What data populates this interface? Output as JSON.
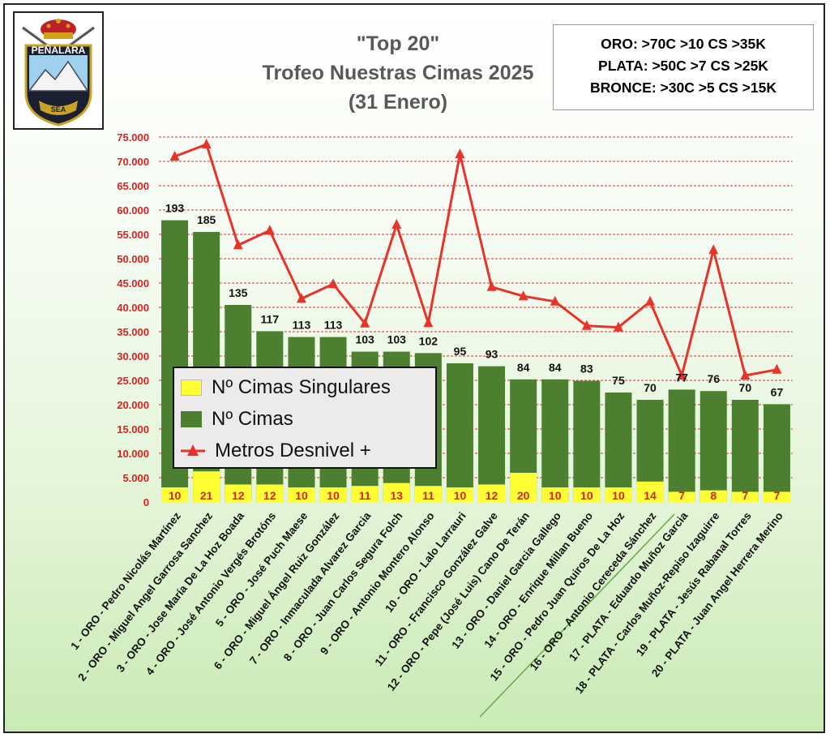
{
  "title": {
    "line1": "\"Top 20\"",
    "line2": "Trofeo Nuestras Cimas 2025",
    "line3": "(31 Enero)"
  },
  "criteria": {
    "oro": "ORO: >70C >10 CS >35K",
    "plata": "PLATA: >50C >7 CS >25K",
    "bronce": "BRONCE: >30C >5 CS >15K"
  },
  "logo": {
    "text": "PEÑALARA",
    "badge": "SEA"
  },
  "legend": {
    "singulares": "Nº Cimas Singulares",
    "cimas": "Nº Cimas",
    "metros": "Metros Desnivel +"
  },
  "colors": {
    "cimas": "#4d7f31",
    "singulares": "#ffff33",
    "metros": "#e8322a",
    "axis_labels": "#e02020",
    "gridlines": "#d93030",
    "divider": "#66aa44"
  },
  "chart_data": {
    "type": "bar",
    "categories": [
      "1 - ORO - Pedro Nicolás Martínez",
      "2 - ORO - Miguel Angel Garrosa Sanchez",
      "3 - ORO - Jose María De La Hoz Boada",
      "4 - ORO - José Antonio Vergés Brotóns",
      "5 - ORO - José Puch Maese",
      "6 - ORO - Miguel Ángel Ruiz González",
      "7 - ORO - Inmaculada Alvarez Garcia",
      "8 - ORO - Juan Carlos Segura Folch",
      "9 - ORO - Antonio Montero Alonso",
      "10 - ORO - Lalo Larrauri",
      "11 - ORO - Francisco González Galve",
      "12 - ORO - Pepe (José Luis) Cano De Terán",
      "13 - ORO - Daniel Garcia Gallego",
      "14 - ORO - Enrique Millan Bueno",
      "15 - ORO - Pedro Juan Quiros De La Hoz",
      "16 - ORO - Antonio Cereceda Sánchez",
      "17 - PLATA - Eduardo Muñoz Garcia",
      "18 - PLATA - Carlos Muñoz-Repiso Izaguirre",
      "19 - PLATA - Jesús Rabanal Torres",
      "20 - PLATA - Juan Angel Herrera Merino"
    ],
    "y_axis": {
      "min": 0,
      "max": 75000,
      "step": 5000,
      "tick_labels": [
        "0",
        "5.000",
        "10.000",
        "15.000",
        "20.000",
        "25.000",
        "30.000",
        "35.000",
        "40.000",
        "45.000",
        "50.000",
        "55.000",
        "60.000",
        "65.000",
        "70.000",
        "75.000"
      ]
    },
    "grid": true,
    "legend_position": "middle-left",
    "series": [
      {
        "name": "Nº Cimas Singulares",
        "kind": "bar",
        "values": [
          10,
          21,
          12,
          12,
          10,
          10,
          11,
          13,
          11,
          10,
          12,
          20,
          10,
          10,
          10,
          14,
          7,
          8,
          7,
          7
        ]
      },
      {
        "name": "Nº Cimas",
        "kind": "bar",
        "values": [
          193,
          185,
          135,
          117,
          113,
          113,
          103,
          103,
          102,
          95,
          93,
          84,
          84,
          83,
          75,
          70,
          77,
          76,
          70,
          67
        ]
      },
      {
        "name": "Metros Desnivel +",
        "kind": "line",
        "values": [
          71000,
          73500,
          52800,
          55800,
          41800,
          44800,
          36700,
          57000,
          36800,
          71500,
          44200,
          42300,
          41200,
          36200,
          35900,
          41200,
          26000,
          51800,
          26000,
          27200
        ]
      }
    ]
  }
}
